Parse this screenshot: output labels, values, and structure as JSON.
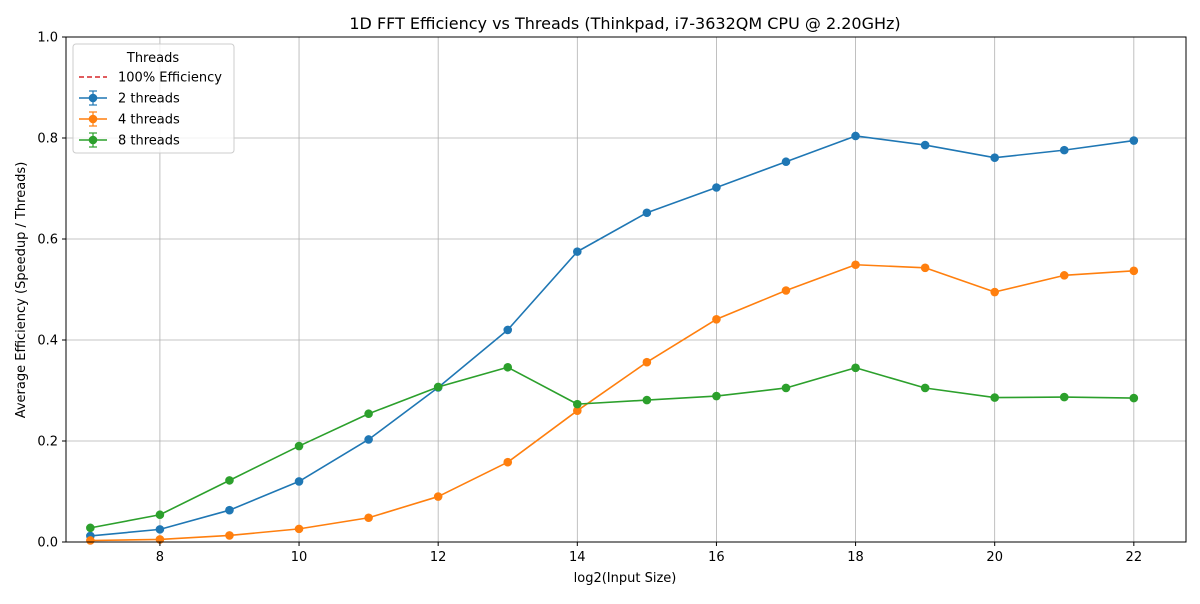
{
  "chart_data": {
    "type": "line",
    "title": "1D FFT Efficiency vs Threads (Thinkpad, i7-3632QM CPU @ 2.20GHz)",
    "xlabel": "log2(Input Size)",
    "ylabel": "Average Efficiency (Speedup / Threads)",
    "xlim": [
      6.65,
      22.75
    ],
    "ylim": [
      0,
      1.0
    ],
    "xticks": [
      8,
      10,
      12,
      14,
      16,
      18,
      20,
      22
    ],
    "xtick_labels": [
      "8",
      "10",
      "12",
      "14",
      "16",
      "18",
      "20",
      "22"
    ],
    "yticks": [
      0,
      0.2,
      0.4,
      0.6,
      0.8,
      1.0
    ],
    "ytick_labels": [
      "0.0",
      "0.2",
      "0.4",
      "0.6",
      "0.8",
      "1.0"
    ],
    "grid": true,
    "legend": {
      "title": "Threads",
      "position": "top-left",
      "entries": [
        "100% Efficiency",
        "2 threads",
        "4 threads",
        "8 threads"
      ]
    },
    "x": [
      7,
      8,
      9,
      10,
      11,
      12,
      13,
      14,
      15,
      16,
      17,
      18,
      19,
      20,
      21,
      22
    ],
    "reference_line": {
      "name": "100% Efficiency",
      "color": "#d62728",
      "style": "dashed"
    },
    "series": [
      {
        "name": "2 threads",
        "color": "#1f77b4",
        "values": [
          0.012,
          0.025,
          0.063,
          0.12,
          0.203,
          0.306,
          0.42,
          0.575,
          0.652,
          0.702,
          0.753,
          0.804,
          0.786,
          0.761,
          0.776,
          0.795
        ]
      },
      {
        "name": "4 threads",
        "color": "#ff7f0e",
        "values": [
          0.003,
          0.005,
          0.013,
          0.026,
          0.048,
          0.09,
          0.158,
          0.26,
          0.356,
          0.441,
          0.498,
          0.549,
          0.543,
          0.495,
          0.528,
          0.537
        ]
      },
      {
        "name": "8 threads",
        "color": "#2ca02c",
        "values": [
          0.028,
          0.054,
          0.122,
          0.19,
          0.254,
          0.307,
          0.346,
          0.273,
          0.281,
          0.289,
          0.305,
          0.345,
          0.305,
          0.286,
          0.287,
          0.285
        ]
      }
    ]
  }
}
